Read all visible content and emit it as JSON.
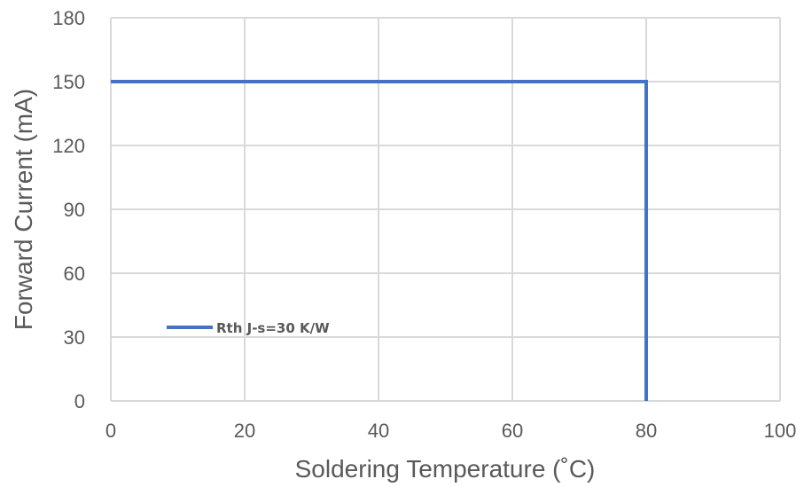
{
  "chart_data": {
    "type": "line",
    "title": "",
    "xlabel": "Soldering Temperature (˚C)",
    "ylabel": "Forward Current (mA)",
    "xlim": [
      0,
      100
    ],
    "ylim": [
      0,
      180
    ],
    "xticks": [
      0,
      20,
      40,
      60,
      80,
      100
    ],
    "yticks": [
      0,
      30,
      60,
      90,
      120,
      150,
      180
    ],
    "grid": true,
    "legend_position": "inside-lower-left",
    "series": [
      {
        "name": "Rth J-s=30 K/W",
        "color": "#4472c4",
        "x": [
          0,
          80,
          80
        ],
        "y": [
          150,
          150,
          0
        ]
      }
    ]
  }
}
